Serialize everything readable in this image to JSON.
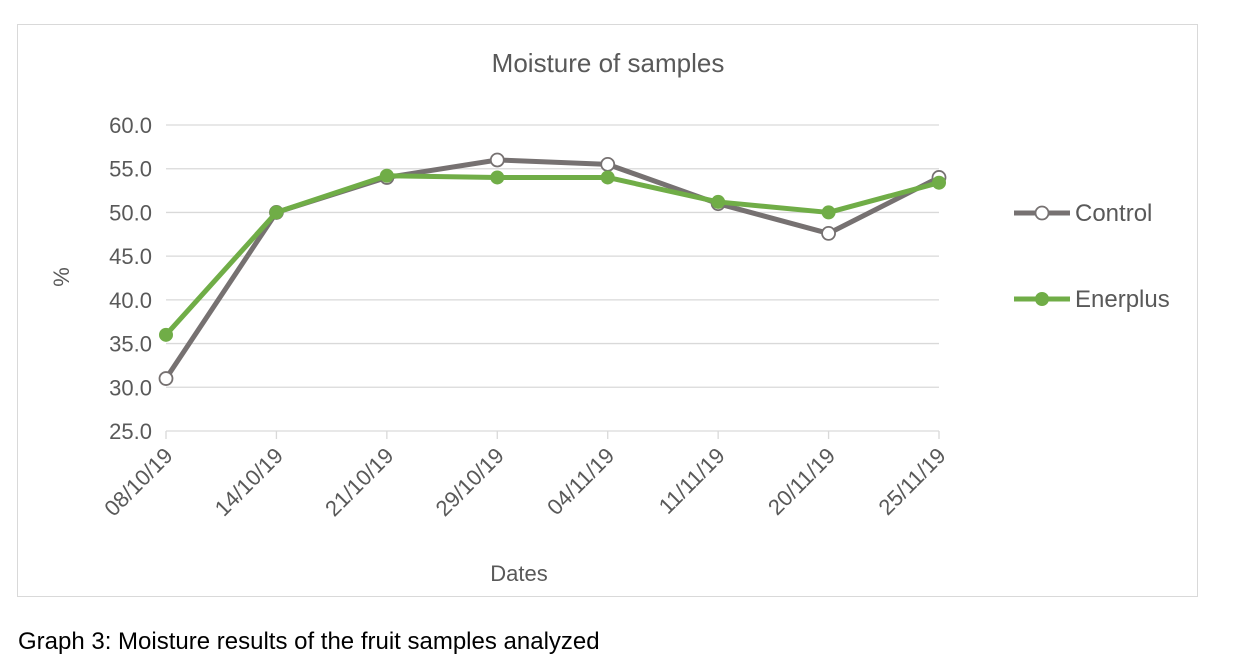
{
  "caption": "Graph 3: Moisture results of the fruit samples analyzed",
  "chart_data": {
    "type": "line",
    "title": "Moisture of samples",
    "xlabel": "Dates",
    "ylabel": "%",
    "categories": [
      "08/10/19",
      "14/10/19",
      "21/10/19",
      "29/10/19",
      "04/11/19",
      "11/11/19",
      "20/11/19",
      "25/11/19"
    ],
    "ylim": [
      25,
      60
    ],
    "yticks": [
      "25.0",
      "30.0",
      "35.0",
      "40.0",
      "45.0",
      "50.0",
      "55.0",
      "60.0"
    ],
    "grid": true,
    "legend_position": "right",
    "series": [
      {
        "name": "Control",
        "color": "#767171",
        "marker": "hollow-circle",
        "values": [
          31.0,
          50.0,
          54.0,
          56.0,
          55.5,
          51.0,
          47.6,
          54.0
        ]
      },
      {
        "name": "Enerplus",
        "color": "#70ad47",
        "marker": "filled-circle",
        "values": [
          36.0,
          50.0,
          54.2,
          54.0,
          54.0,
          51.2,
          50.0,
          53.4
        ]
      }
    ]
  }
}
